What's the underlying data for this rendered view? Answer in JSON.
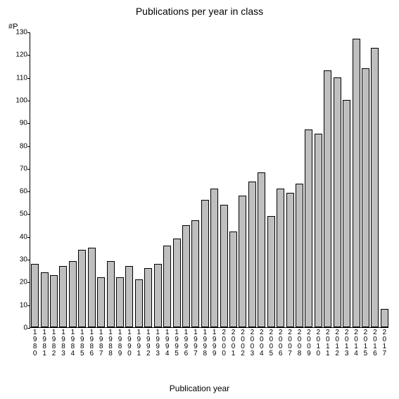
{
  "chart": {
    "type": "bar",
    "title": "Publications per year in class",
    "yaxis_label": "#P",
    "xaxis_label": "Publication year",
    "background_color": "#ffffff",
    "bar_fill": "#bfbfbf",
    "bar_border": "#000000",
    "axis_color": "#000000",
    "text_color": "#000000",
    "title_fontsize": 14,
    "label_fontsize": 12,
    "tick_fontsize": 10,
    "ylim": [
      0,
      130
    ],
    "ytick_step": 10,
    "bar_width_ratio": 0.82,
    "categories": [
      "1980",
      "1981",
      "1982",
      "1983",
      "1984",
      "1985",
      "1986",
      "1987",
      "1988",
      "1989",
      "1990",
      "1991",
      "1992",
      "1993",
      "1994",
      "1995",
      "1996",
      "1997",
      "1998",
      "1999",
      "2000",
      "2001",
      "2002",
      "2003",
      "2004",
      "2005",
      "2006",
      "2007",
      "2008",
      "2009",
      "2010",
      "2011",
      "2012",
      "2013",
      "2014",
      "2015",
      "2016",
      "2017"
    ],
    "values": [
      28,
      24,
      23,
      27,
      29,
      34,
      35,
      22,
      29,
      22,
      27,
      21,
      26,
      28,
      36,
      39,
      45,
      47,
      56,
      61,
      54,
      42,
      58,
      64,
      68,
      49,
      61,
      59,
      63,
      87,
      85,
      113,
      110,
      100,
      127,
      114,
      123,
      8
    ]
  }
}
